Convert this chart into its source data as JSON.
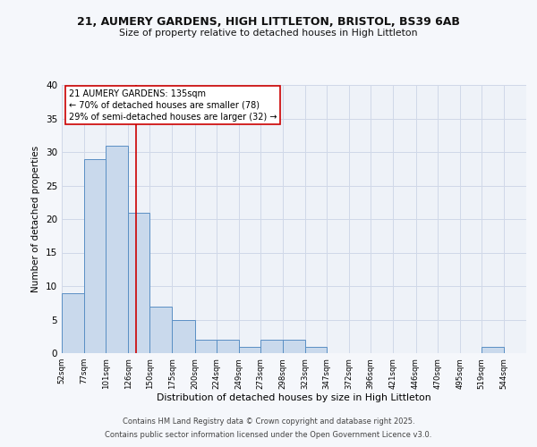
{
  "title1": "21, AUMERY GARDENS, HIGH LITTLETON, BRISTOL, BS39 6AB",
  "title2": "Size of property relative to detached houses in High Littleton",
  "xlabel": "Distribution of detached houses by size in High Littleton",
  "ylabel": "Number of detached properties",
  "bar_values": [
    9,
    29,
    31,
    21,
    7,
    5,
    2,
    2,
    1,
    2,
    2,
    1,
    0,
    0,
    0,
    0,
    0,
    0,
    0,
    1,
    0
  ],
  "bin_edges": [
    52,
    77,
    101,
    126,
    150,
    175,
    200,
    224,
    249,
    273,
    298,
    323,
    347,
    372,
    396,
    421,
    446,
    470,
    495,
    519,
    544,
    569
  ],
  "x_tick_labels": [
    "52sqm",
    "77sqm",
    "101sqm",
    "126sqm",
    "150sqm",
    "175sqm",
    "200sqm",
    "224sqm",
    "249sqm",
    "273sqm",
    "298sqm",
    "323sqm",
    "347sqm",
    "372sqm",
    "396sqm",
    "421sqm",
    "446sqm",
    "470sqm",
    "495sqm",
    "519sqm",
    "544sqm"
  ],
  "ylim": [
    0,
    40
  ],
  "bar_color": "#c9d9ec",
  "bar_edge_color": "#5a8fc4",
  "vline_x": 135,
  "vline_color": "#cc0000",
  "annotation_line1": "21 AUMERY GARDENS: 135sqm",
  "annotation_line2": "← 70% of detached houses are smaller (78)",
  "annotation_line3": "29% of semi-detached houses are larger (32) →",
  "annotation_box_color": "#ffffff",
  "annotation_box_edge": "#cc0000",
  "grid_color": "#d0d8e8",
  "bg_color": "#eef2f8",
  "fig_bg_color": "#f5f7fb",
  "footer1": "Contains HM Land Registry data © Crown copyright and database right 2025.",
  "footer2": "Contains public sector information licensed under the Open Government Licence v3.0."
}
